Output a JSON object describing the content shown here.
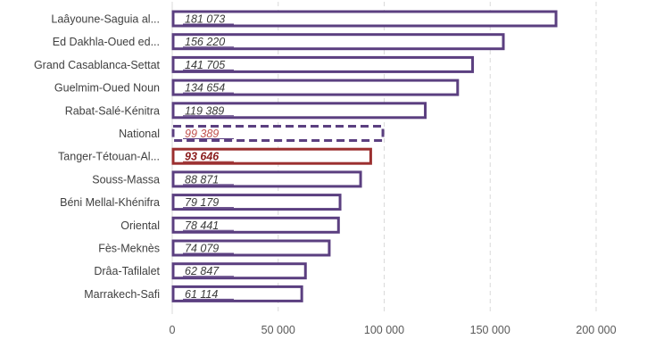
{
  "chart_data": {
    "type": "bar",
    "orientation": "horizontal",
    "categories": [
      "Laâyoune-Saguia al...",
      "Ed Dakhla-Oued ed...",
      "Grand Casablanca-Settat",
      "Guelmim-Oued Noun",
      "Rabat-Salé-Kénitra",
      "National",
      "Tanger-Tétouan-Al...",
      "Souss-Massa",
      "Béni Mellal-Khénifra",
      "Oriental",
      "Fès-Meknès",
      "Drâa-Tafilalet",
      "Marrakech-Safi"
    ],
    "values": [
      181073,
      156220,
      141705,
      134654,
      119389,
      99389,
      93646,
      88871,
      79179,
      78441,
      74079,
      62847,
      61114
    ],
    "value_labels": [
      "181 073",
      "156 220",
      "141 705",
      "134 654",
      "119 389",
      "99 389",
      "93 646",
      "88 871",
      "79 179",
      "78 441",
      "74 079",
      "62 847",
      "61 114"
    ],
    "xlim": [
      0,
      200000
    ],
    "x_ticks": [
      0,
      50000,
      100000,
      150000,
      200000
    ],
    "x_tick_labels": [
      "0",
      "50 000",
      "100 000",
      "150 000",
      "200 000"
    ],
    "grid": "vertical-dashed",
    "title": "",
    "xlabel": "",
    "ylabel": "",
    "colors": {
      "bar_outline": "#5b3f80",
      "bar_fill": "#ffffff",
      "highlight_outline": "#9b2f2f",
      "national_label": "#c0504d",
      "label_text": "#3a3a3a",
      "highlight_label": "#8b1e1e",
      "grid": "#d9d9d9"
    },
    "highlight": {
      "Tanger-Tétouan-Al...": "solid-red-outline",
      "National": "dashed-outline"
    }
  }
}
